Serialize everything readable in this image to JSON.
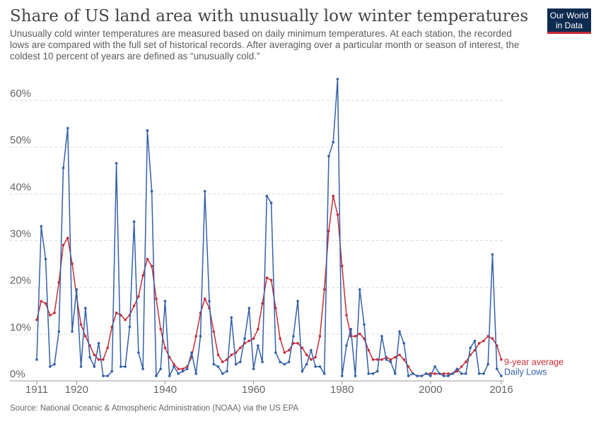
{
  "chart_data": {
    "type": "line",
    "title": "Share of US land area with unusually low winter temperatures",
    "subtitle": "Unusually cold winter temperatures are measured based on daily minimum temperatures. At each station, the recorded lows are compared with the full set of historical records. After averaging over a particular month or season of interest, the coldest 10 percent of years are defined as “unusually cold.”",
    "source": "Source: National Oceanic & Atmospheric Administration (NOAA) via the US EPA",
    "logo": [
      "Our World",
      "in Data"
    ],
    "x": [
      1911,
      1912,
      1913,
      1914,
      1915,
      1916,
      1917,
      1918,
      1919,
      1920,
      1921,
      1922,
      1923,
      1924,
      1925,
      1926,
      1927,
      1928,
      1929,
      1930,
      1931,
      1932,
      1933,
      1934,
      1935,
      1936,
      1937,
      1938,
      1939,
      1940,
      1941,
      1942,
      1943,
      1944,
      1945,
      1946,
      1947,
      1948,
      1949,
      1950,
      1951,
      1952,
      1953,
      1954,
      1955,
      1956,
      1957,
      1958,
      1959,
      1960,
      1961,
      1962,
      1963,
      1964,
      1965,
      1966,
      1967,
      1968,
      1969,
      1970,
      1971,
      1972,
      1973,
      1974,
      1975,
      1976,
      1977,
      1978,
      1979,
      1980,
      1981,
      1982,
      1983,
      1984,
      1985,
      1986,
      1987,
      1988,
      1989,
      1990,
      1991,
      1992,
      1993,
      1994,
      1995,
      1996,
      1997,
      1998,
      1999,
      2000,
      2001,
      2002,
      2003,
      2004,
      2005,
      2006,
      2007,
      2008,
      2009,
      2010,
      2011,
      2012,
      2013,
      2014,
      2015,
      2016
    ],
    "series": [
      {
        "name": "9-year average",
        "color": "#c62d38",
        "values": [
          12,
          16,
          15.5,
          13,
          13.5,
          20,
          28,
          29.5,
          24,
          17,
          11,
          8.5,
          6.5,
          4.5,
          3.5,
          3.5,
          6,
          10.5,
          13.5,
          13,
          12,
          13,
          15,
          17,
          21.5,
          25,
          23.5,
          16.5,
          10,
          6,
          4,
          2.5,
          1.5,
          1.5,
          2,
          4,
          8.5,
          13.5,
          16.5,
          14.5,
          9.5,
          4.5,
          3,
          3.5,
          4.5,
          5,
          6,
          7,
          7.5,
          8,
          10,
          15.5,
          21,
          20.5,
          14.5,
          8,
          5,
          5.5,
          7,
          7,
          6,
          4.5,
          3.5,
          4,
          8.5,
          18.5,
          31,
          38.5,
          34.5,
          23.5,
          13,
          8.5,
          8.5,
          9,
          8,
          5.5,
          3.5,
          3.5,
          3.5,
          4,
          3.5,
          4,
          4.5,
          3.5,
          2,
          0.5,
          0,
          0,
          0.5,
          0.5,
          0.5,
          0.5,
          0.5,
          0.5,
          0.5,
          1,
          2,
          3,
          4.5,
          5.5,
          7,
          7.5,
          8.5,
          8,
          6.5,
          3.5
        ]
      },
      {
        "name": "Daily Lows",
        "color": "#3360a9",
        "values": [
          3.5,
          32,
          25,
          2,
          2.5,
          9.5,
          44.5,
          53,
          9.5,
          18.5,
          2,
          14.5,
          4,
          2,
          7,
          0,
          0,
          1,
          45.5,
          2,
          2,
          10.5,
          33,
          5,
          1.5,
          52.5,
          39.5,
          0,
          1.5,
          16,
          0,
          2,
          0.5,
          1,
          1.5,
          5,
          0.5,
          8.5,
          39.5,
          16,
          2.5,
          2,
          0.5,
          1,
          12.5,
          2.5,
          3,
          8,
          14.5,
          1.5,
          6.5,
          3,
          38.5,
          37,
          5,
          3,
          2.5,
          3,
          8.5,
          16,
          1,
          2.5,
          5.5,
          2,
          2,
          0.5,
          47,
          50,
          63.5,
          0,
          6.5,
          10,
          0,
          18.5,
          11,
          0.5,
          0.5,
          1,
          8.5,
          3.5,
          3,
          0.5,
          9.5,
          7,
          0,
          0.5,
          0,
          0,
          0.5,
          0,
          2,
          0.5,
          0,
          0,
          0.5,
          1.5,
          0.5,
          0.5,
          6,
          7.5,
          0.5,
          0.5,
          2.5,
          26,
          1.5,
          0
        ]
      }
    ],
    "xlim": [
      1911,
      2016
    ],
    "xticks": [
      1911,
      1920,
      1940,
      1960,
      1980,
      2000,
      2016
    ],
    "ylim": [
      0,
      65
    ],
    "yticks": [
      {
        "value": 0,
        "label": "0%"
      },
      {
        "value": 10,
        "label": "10%"
      },
      {
        "value": 20,
        "label": "20%"
      },
      {
        "value": 30,
        "label": "30%"
      },
      {
        "value": 40,
        "label": "40%"
      },
      {
        "value": 50,
        "label": "50%"
      },
      {
        "value": 60,
        "label": "60%"
      }
    ],
    "grid": true
  }
}
